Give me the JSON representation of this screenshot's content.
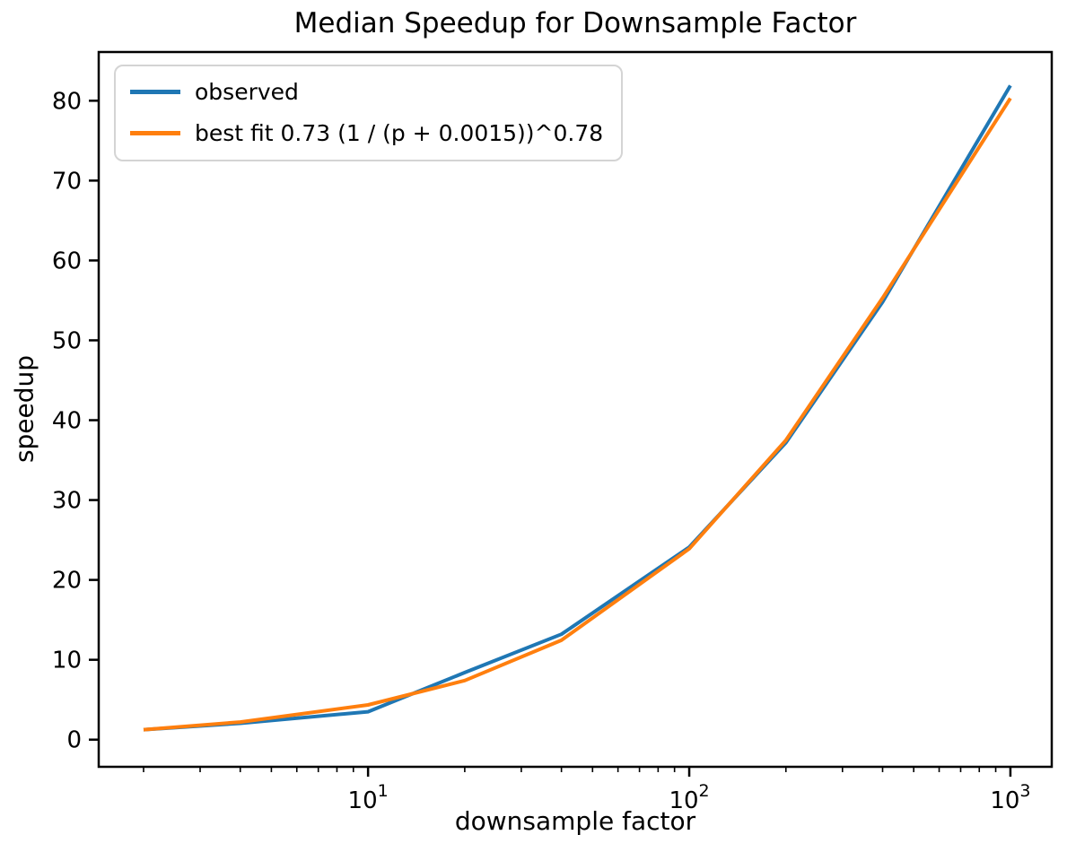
{
  "chart_data": {
    "type": "line",
    "title": "Median Speedup for Downsample Factor",
    "xlabel": "downsample factor",
    "ylabel": "speedup",
    "x_scale": "log",
    "y_scale": "linear",
    "grid": false,
    "legend_position": "upper left",
    "xlim": [
      1.45,
      1345
    ],
    "ylim": [
      -3.4,
      86.1
    ],
    "x": [
      2,
      4,
      10,
      20,
      40,
      100,
      200,
      400,
      1000
    ],
    "series": [
      {
        "name": "observed",
        "color": "#1f77b4",
        "values": [
          1.25,
          2.05,
          3.5,
          8.4,
          13.2,
          24.1,
          37.2,
          54.8,
          81.9
        ]
      },
      {
        "name": "best fit 0.73 (1 / (p + 0.0015))^0.78",
        "color": "#ff7f0e",
        "values": [
          1.25,
          2.2,
          4.35,
          7.4,
          12.45,
          23.9,
          37.5,
          55.3,
          80.3
        ]
      }
    ],
    "y_ticks": [
      0,
      10,
      20,
      30,
      40,
      50,
      60,
      70,
      80
    ],
    "x_ticks": [
      {
        "value": 10,
        "base": "10",
        "exp": "1"
      },
      {
        "value": 100,
        "base": "10",
        "exp": "2"
      },
      {
        "value": 1000,
        "base": "10",
        "exp": "3"
      }
    ]
  }
}
